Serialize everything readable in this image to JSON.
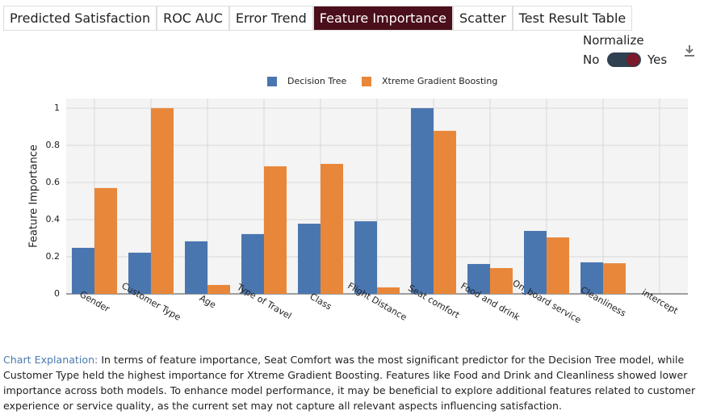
{
  "tabs": [
    "Predicted Satisfaction",
    "ROC AUC",
    "Error Trend",
    "Feature Importance",
    "Scatter",
    "Test Result Table"
  ],
  "active_tab": "Feature Importance",
  "normalize": {
    "label": "Normalize",
    "off": "No",
    "on": "Yes"
  },
  "chart_data": {
    "type": "bar",
    "y_label": "Feature Importance",
    "categories": [
      "Gender",
      "Customer Type",
      "Age",
      "Type of Travel",
      "Class",
      "Flight Distance",
      "Seat comfort",
      "Food and drink",
      "On_board service",
      "Cleanliness",
      "intercept"
    ],
    "series": [
      {
        "name": "Decision Tree",
        "color": "#4a76b0",
        "values": [
          0.248,
          0.222,
          0.283,
          0.322,
          0.378,
          0.391,
          1.0,
          0.161,
          0.339,
          0.17,
          0
        ]
      },
      {
        "name": "Xtreme Gradient Boosting",
        "color": "#e8873a",
        "values": [
          0.57,
          1.0,
          0.048,
          0.687,
          0.7,
          0.035,
          0.878,
          0.139,
          0.304,
          0.165,
          0
        ]
      }
    ],
    "ylim": [
      0,
      1.052
    ],
    "yticks": [
      0,
      0.2,
      0.4,
      0.6,
      0.8,
      1
    ],
    "grid": true
  },
  "explanation": {
    "label": "Chart Explanation:",
    "text": "In terms of feature importance, Seat Comfort was the most significant predictor for the Decision Tree model, while Customer Type held the highest importance for Xtreme Gradient Boosting. Features like Food and Drink and Cleanliness showed lower importance across both models. To enhance model performance, it may be beneficial to explore additional features related to customer experience or service quality, as the current set may not capture all relevant aspects influencing satisfaction."
  }
}
